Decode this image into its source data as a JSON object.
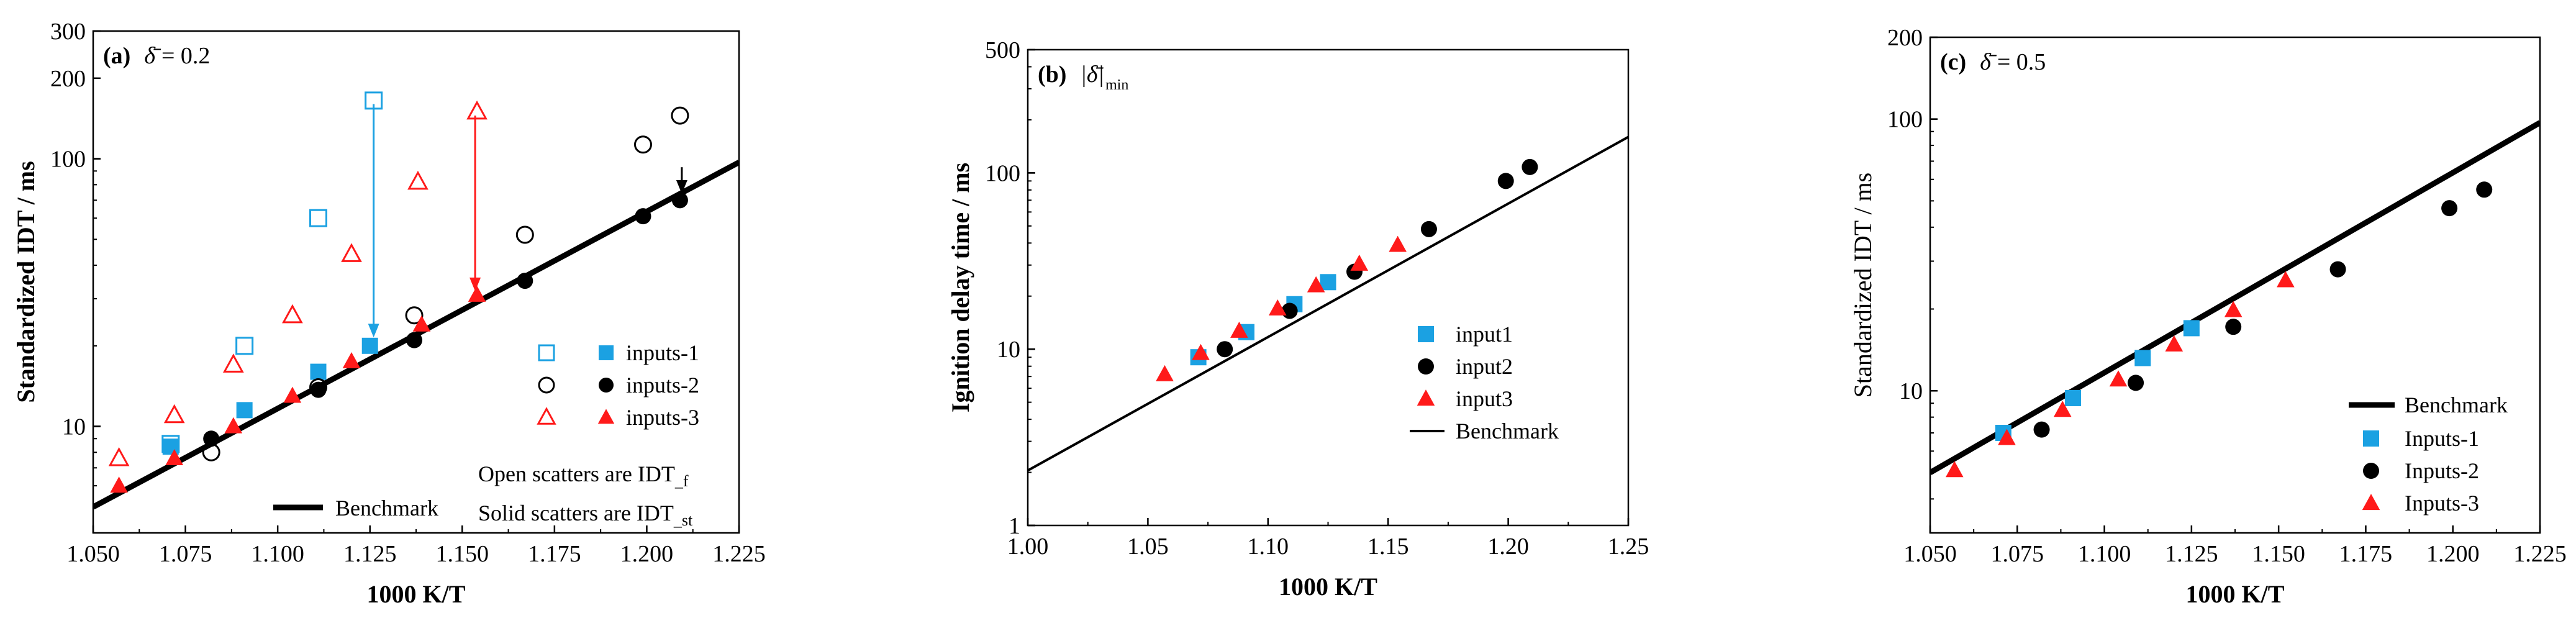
{
  "chart_data": [
    {
      "type": "scatter",
      "panel_label": "(a)",
      "title_symbol": "δ̄",
      "title_value": "= 0.2",
      "xlabel": "1000 K/T",
      "ylabel": "Standardized IDT / ms",
      "yscale": "log",
      "xlim": [
        1.05,
        1.225
      ],
      "ylim": [
        4,
        300
      ],
      "xticks": [
        "1.050",
        "1.075",
        "1.100",
        "1.125",
        "1.150",
        "1.175",
        "1.200",
        "1.225"
      ],
      "yticks": [
        {
          "value": 10,
          "label": "10"
        },
        {
          "value": 100,
          "label": "100"
        },
        {
          "value": 200,
          "label": "200"
        },
        {
          "value": 300,
          "label": "300"
        }
      ],
      "benchmark": {
        "label": "Benchmark",
        "x": [
          1.05,
          1.225
        ],
        "y": [
          5.0,
          97.0
        ]
      },
      "series": [
        {
          "name": "inputs-1",
          "marker": "square",
          "color": "#1ba1e2",
          "open": {
            "x": [
              1.071,
              1.091,
              1.111,
              1.126
            ],
            "y": [
              8.6,
              20.0,
              60.0,
              165.0
            ]
          },
          "solid": {
            "x": [
              1.071,
              1.091,
              1.111,
              1.125
            ],
            "y": [
              8.4,
              11.5,
              16.0,
              20.0
            ]
          }
        },
        {
          "name": "inputs-2",
          "marker": "circle",
          "color": "#000000",
          "open": {
            "x": [
              1.082,
              1.111,
              1.137,
              1.167,
              1.199,
              1.209
            ],
            "y": [
              8.0,
              14.0,
              26.0,
              52.0,
              113.0,
              145.0
            ]
          },
          "solid": {
            "x": [
              1.082,
              1.111,
              1.137,
              1.167,
              1.199,
              1.209
            ],
            "y": [
              9.0,
              13.7,
              21.0,
              35.0,
              61.0,
              70.0
            ]
          }
        },
        {
          "name": "inputs-3",
          "marker": "triangle",
          "color": "#ff1a1a",
          "open": {
            "x": [
              1.057,
              1.072,
              1.088,
              1.104,
              1.12,
              1.138,
              1.154
            ],
            "y": [
              7.6,
              11.0,
              17.0,
              26.0,
              44.0,
              82.0,
              150.0
            ]
          },
          "solid": {
            "x": [
              1.057,
              1.072,
              1.088,
              1.104,
              1.12,
              1.139,
              1.154
            ],
            "y": [
              6.0,
              7.6,
              10.0,
              13.0,
              17.5,
              24.0,
              31.0
            ]
          }
        }
      ],
      "arrows": [
        {
          "color": "#1ba1e2",
          "x": 1.126,
          "from": 160.0,
          "to": 21.5
        },
        {
          "color": "#ff1a1a",
          "x": 1.1535,
          "from": 145.0,
          "to": 32.0
        },
        {
          "color": "#000000",
          "x": 1.2095,
          "from": 93.0,
          "to": 74.0
        }
      ],
      "notes": [
        "Open scatters are IDT",
        "Solid scatters are IDT"
      ],
      "note_subscripts": [
        "_f",
        "_st"
      ]
    },
    {
      "type": "scatter",
      "panel_label": "(b)",
      "title_symbol": "|δ̄|",
      "title_subscript": "min",
      "xlabel": "1000 K/T",
      "ylabel": "Ignition delay time / ms",
      "yscale": "log",
      "xlim": [
        1.0,
        1.25
      ],
      "ylim": [
        1,
        500
      ],
      "xticks": [
        "1.00",
        "1.05",
        "1.10",
        "1.15",
        "1.20",
        "1.25"
      ],
      "yticks": [
        {
          "value": 1,
          "label": "1"
        },
        {
          "value": 10,
          "label": "10"
        },
        {
          "value": 100,
          "label": "100"
        },
        {
          "value": 500,
          "label": "500"
        }
      ],
      "benchmark": {
        "label": "Benchmark",
        "x": [
          1.0,
          1.25
        ],
        "y": [
          2.05,
          160.0
        ]
      },
      "series": [
        {
          "name": "input1",
          "marker": "square",
          "color": "#1ba1e2",
          "x": [
            1.071,
            1.091,
            1.111,
            1.125
          ],
          "y": [
            9.0,
            12.5,
            18.0,
            24.0
          ]
        },
        {
          "name": "input2",
          "marker": "circle",
          "color": "#000000",
          "x": [
            1.082,
            1.109,
            1.136,
            1.167,
            1.199,
            1.209
          ],
          "y": [
            10.0,
            16.5,
            27.5,
            48.0,
            90.0,
            108.0
          ]
        },
        {
          "name": "input3",
          "marker": "triangle",
          "color": "#ff1a1a",
          "x": [
            1.057,
            1.072,
            1.088,
            1.104,
            1.12,
            1.138,
            1.154
          ],
          "y": [
            7.2,
            9.5,
            12.7,
            17.0,
            23.0,
            30.5,
            39.0
          ]
        }
      ]
    },
    {
      "type": "scatter",
      "panel_label": "(c)",
      "title_symbol": "δ̄",
      "title_value": "= 0.5",
      "xlabel": "1000 K/T",
      "ylabel": "Standardized IDT / ms",
      "yscale": "log",
      "xlim": [
        1.05,
        1.225
      ],
      "ylim": [
        3,
        200
      ],
      "xticks": [
        "1.050",
        "1.075",
        "1.100",
        "1.125",
        "1.150",
        "1.175",
        "1.200",
        "1.225"
      ],
      "yticks": [
        {
          "value": 10,
          "label": "10"
        },
        {
          "value": 100,
          "label": "100"
        },
        {
          "value": 200,
          "label": "200"
        }
      ],
      "benchmark": {
        "label": "Benchmark",
        "x": [
          1.05,
          1.225
        ],
        "y": [
          5.0,
          97.0
        ]
      },
      "series": [
        {
          "name": "Inputs-1",
          "marker": "square",
          "color": "#1ba1e2",
          "x": [
            1.071,
            1.091,
            1.111,
            1.125
          ],
          "y": [
            7.0,
            9.4,
            13.2,
            17.0
          ]
        },
        {
          "name": "Inputs-2",
          "marker": "circle",
          "color": "#000000",
          "x": [
            1.082,
            1.109,
            1.137,
            1.167,
            1.199,
            1.209
          ],
          "y": [
            7.2,
            10.7,
            17.2,
            28.0,
            47.0,
            55.0
          ]
        },
        {
          "name": "Inputs-3",
          "marker": "triangle",
          "color": "#ff1a1a",
          "x": [
            1.057,
            1.072,
            1.088,
            1.104,
            1.12,
            1.137,
            1.152
          ],
          "y": [
            5.1,
            6.7,
            8.5,
            11.0,
            14.8,
            19.8,
            25.5
          ]
        }
      ]
    }
  ]
}
